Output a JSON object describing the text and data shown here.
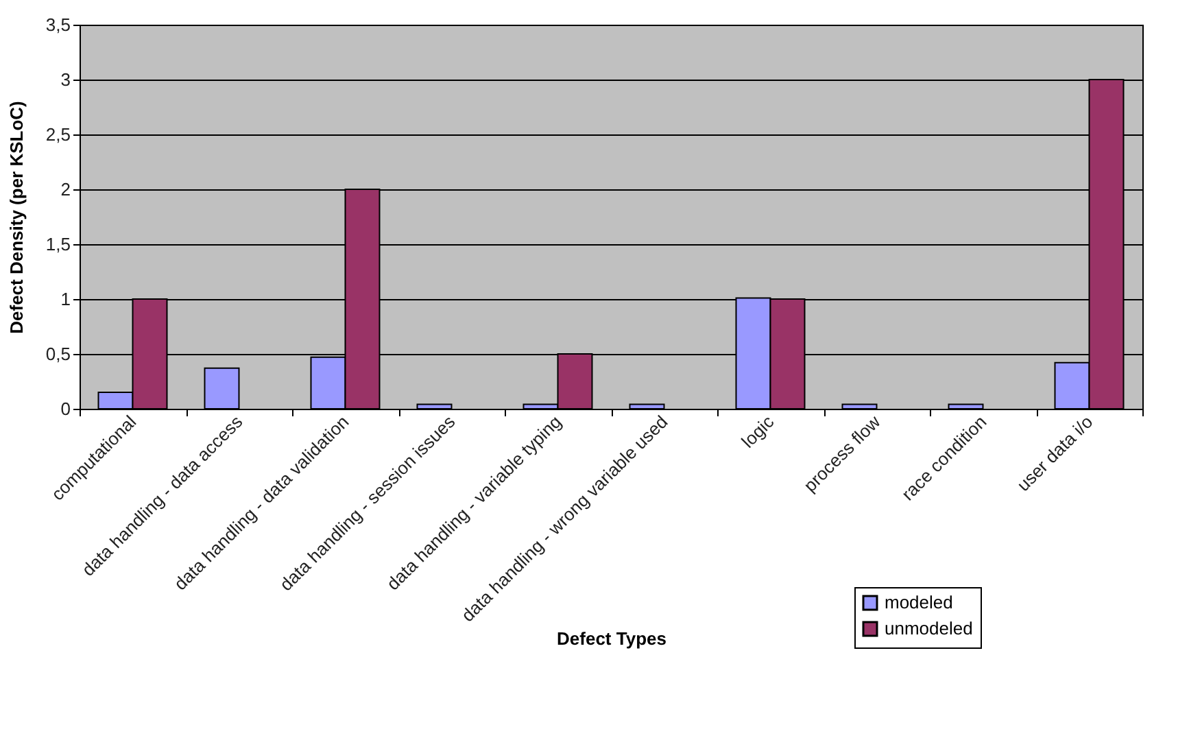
{
  "chart_data": {
    "type": "bar",
    "xlabel": "Defect Types",
    "ylabel": "Defect Density (per KSLoC)",
    "categories": [
      "computational",
      "data handling - data access",
      "data handling - data validation",
      "data handling - session issues",
      "data handling - variable typing",
      "data handling - wrong variable used",
      "logic",
      "process flow",
      "race condition",
      "user data i/o"
    ],
    "series": [
      {
        "name": "modeled",
        "color": "#9999ff",
        "values": [
          0.15,
          0.37,
          0.47,
          0.04,
          0.04,
          0.04,
          1.01,
          0.04,
          0.04,
          0.42
        ]
      },
      {
        "name": "unmodeled",
        "color": "#993366",
        "values": [
          1,
          null,
          2,
          null,
          0.5,
          null,
          1,
          null,
          null,
          3
        ]
      }
    ],
    "ylim": [
      0,
      3.5
    ],
    "yticks": [
      0,
      {
        "value": 0.5,
        "label": "0,5"
      },
      1,
      {
        "value": 1.5,
        "label": "1,5"
      },
      2,
      {
        "value": 2.5,
        "label": "2,5"
      },
      3,
      {
        "value": 3.5,
        "label": "3,5"
      }
    ],
    "grid": "y",
    "legend": "bottom right"
  }
}
